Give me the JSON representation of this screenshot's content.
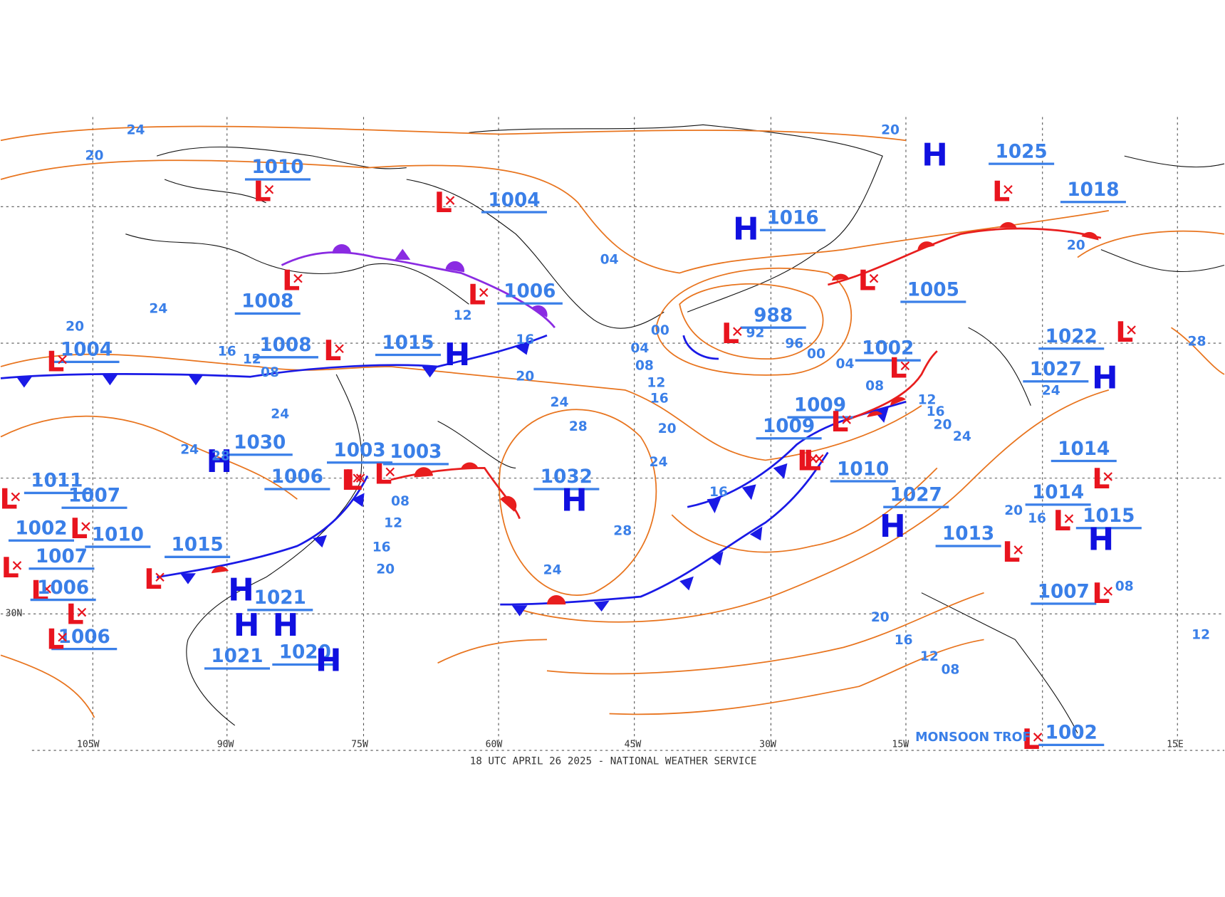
{
  "footer": "18 UTC APRIL 26 2025 - NATIONAL WEATHER SERVICE",
  "annotation": "MONSOON TROF",
  "longitude_labels": [
    "105W",
    "90W",
    "75W",
    "60W",
    "45W",
    "30W",
    "15W",
    "15E"
  ],
  "latitude_labels": [
    "30N"
  ],
  "pressure_centers": [
    {
      "type": "L",
      "pressure": "1010"
    },
    {
      "type": "L",
      "pressure": "1004"
    },
    {
      "type": "H",
      "pressure": "1016"
    },
    {
      "type": "H",
      "pressure": "1025"
    },
    {
      "type": "L",
      "pressure": "1018"
    },
    {
      "type": "L",
      "pressure": "1008"
    },
    {
      "type": "L",
      "pressure": "1006"
    },
    {
      "type": "L",
      "pressure": "988"
    },
    {
      "type": "L",
      "pressure": "1005"
    },
    {
      "type": "L",
      "pressure": "1004"
    },
    {
      "type": "L",
      "pressure": "1008"
    },
    {
      "type": "H",
      "pressure": "1015"
    },
    {
      "type": "L",
      "pressure": "1002"
    },
    {
      "type": "L",
      "pressure": "1022"
    },
    {
      "type": "H",
      "pressure": "1027"
    },
    {
      "type": "L",
      "pressure": "1009"
    },
    {
      "type": "L",
      "pressure": "1009"
    },
    {
      "type": "H",
      "pressure": "1030"
    },
    {
      "type": "L",
      "pressure": "1003"
    },
    {
      "type": "L",
      "pressure": "1003"
    },
    {
      "type": "L",
      "pressure": "1006"
    },
    {
      "type": "H",
      "pressure": "1032"
    },
    {
      "type": "L",
      "pressure": "1010"
    },
    {
      "type": "H",
      "pressure": "1027"
    },
    {
      "type": "L",
      "pressure": "1014"
    },
    {
      "type": "L",
      "pressure": "1014"
    },
    {
      "type": "H",
      "pressure": "1015"
    },
    {
      "type": "L",
      "pressure": "1013"
    },
    {
      "type": "L",
      "pressure": "1011"
    },
    {
      "type": "L",
      "pressure": "1007"
    },
    {
      "type": "L",
      "pressure": "1002"
    },
    {
      "type": "L",
      "pressure": "1010"
    },
    {
      "type": "H",
      "pressure": "1015"
    },
    {
      "type": "L",
      "pressure": "1007"
    },
    {
      "type": "L",
      "pressure": "1006"
    },
    {
      "type": "H",
      "pressure": "1021"
    },
    {
      "type": "L",
      "pressure": "1006"
    },
    {
      "type": "H",
      "pressure": "1021"
    },
    {
      "type": "H",
      "pressure": "1020"
    },
    {
      "type": "L",
      "pressure": "1007"
    },
    {
      "type": "L",
      "pressure": "1002"
    }
  ],
  "isobar_labels": [
    "24",
    "20",
    "24",
    "12",
    "08",
    "16",
    "20",
    "04",
    "24",
    "20",
    "28",
    "24",
    "12",
    "16",
    "20",
    "00",
    "04",
    "08",
    "12",
    "16",
    "20",
    "24",
    "28",
    "24",
    "28",
    "24",
    "20",
    "16",
    "12",
    "08",
    "04",
    "00",
    "96",
    "92",
    "08",
    "12",
    "16",
    "20",
    "24",
    "20",
    "16",
    "12",
    "08",
    "12",
    "16",
    "20",
    "24",
    "16",
    "20",
    "28",
    "08"
  ]
}
